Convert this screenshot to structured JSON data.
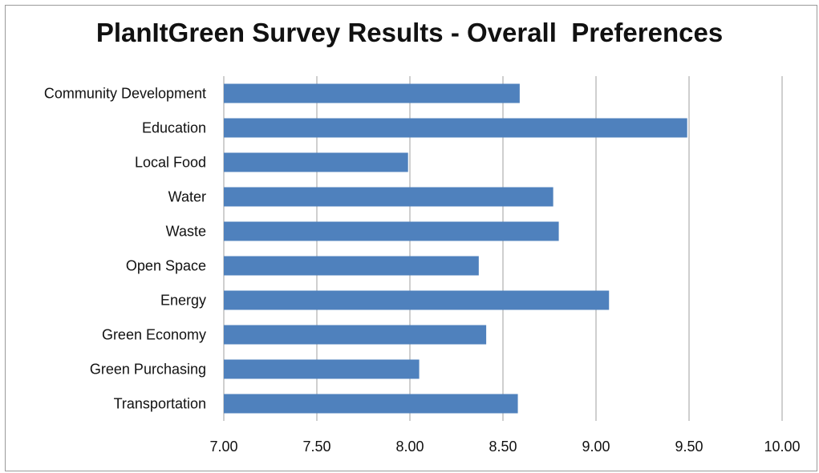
{
  "chart_data": {
    "type": "bar",
    "orientation": "horizontal",
    "title": "PlanItGreen Survey Results - Overall  Preferences",
    "categories": [
      "Community Development",
      "Education",
      "Local Food",
      "Water",
      "Waste",
      "Open Space",
      "Energy",
      "Green Economy",
      "Green Purchasing",
      "Transportation"
    ],
    "values": [
      8.59,
      9.49,
      7.99,
      8.77,
      8.8,
      8.37,
      9.07,
      8.41,
      8.05,
      8.58
    ],
    "xlim": [
      7.0,
      10.0
    ],
    "x_ticks": [
      "7.00",
      "7.50",
      "8.00",
      "8.50",
      "9.00",
      "9.50",
      "10.00"
    ],
    "x_tick_values": [
      7.0,
      7.5,
      8.0,
      8.5,
      9.0,
      9.5,
      10.0
    ],
    "xlabel": "",
    "ylabel": "",
    "grid": "vertical",
    "legend": "none",
    "bar_color": "#4f81bd",
    "grid_color": "#bfbfbf"
  }
}
